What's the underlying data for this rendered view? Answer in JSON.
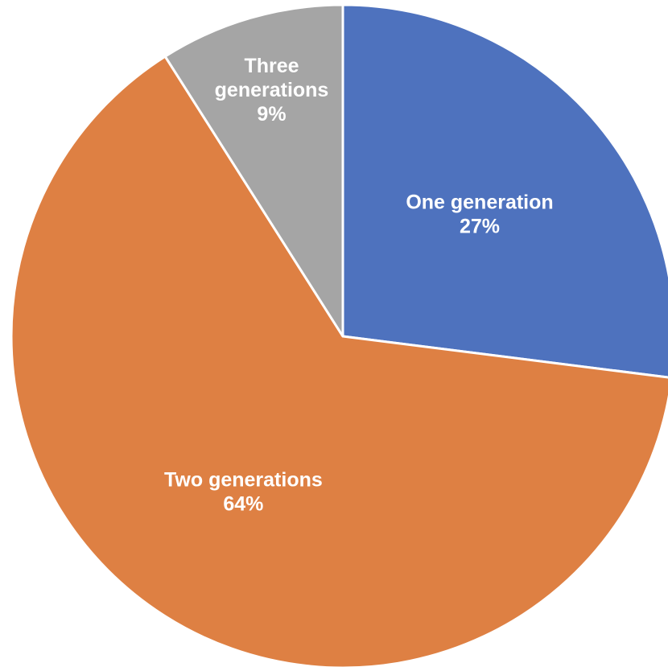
{
  "chart_data": {
    "type": "pie",
    "start_angle_deg": 0,
    "direction": "clockwise",
    "slices": [
      {
        "label_lines": [
          "One generation"
        ],
        "percent_text": "27%",
        "value": 27,
        "color": "#4e72be"
      },
      {
        "label_lines": [
          "Two generations"
        ],
        "percent_text": "64%",
        "value": 64,
        "color": "#de8043"
      },
      {
        "label_lines": [
          "Three",
          "generations"
        ],
        "percent_text": "9%",
        "value": 9,
        "color": "#a5a5a5"
      }
    ],
    "legend": "none"
  }
}
